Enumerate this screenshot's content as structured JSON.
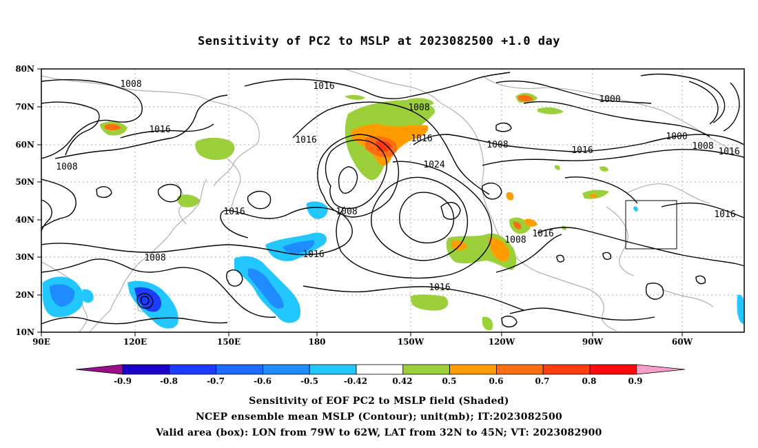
{
  "title": "Sensitivity of PC2 to MSLP at 2023082500 +1.0 day",
  "axes": {
    "lat_labels": [
      "80N",
      "70N",
      "60N",
      "50N",
      "40N",
      "30N",
      "20N",
      "10N"
    ],
    "lon_labels": [
      "90E",
      "120E",
      "150E",
      "180",
      "150W",
      "120W",
      "90W",
      "60W"
    ]
  },
  "contour_labels": [
    "1008",
    "1016",
    "1008",
    "1016",
    "1016",
    "1008",
    "1016",
    "1024",
    "1008",
    "1000",
    "1000",
    "1008",
    "1016",
    "1008",
    "1016",
    "1016",
    "1008",
    "1016",
    "1016",
    "1008"
  ],
  "colorbar": {
    "tick_labels": [
      "-0.9",
      "-0.8",
      "-0.7",
      "-0.6",
      "-0.5",
      "-0.42",
      "0.42",
      "0.5",
      "0.6",
      "0.7",
      "0.8",
      "0.9"
    ],
    "colors": [
      "#9b0e8a",
      "#1a00c8",
      "#1e3cff",
      "#1b6bff",
      "#1e8cff",
      "#22c7ff",
      "#ffffff",
      "#9bd03a",
      "#ff9d00",
      "#ff6e10",
      "#ff3c10",
      "#ff0a0a",
      "#f6a0c8"
    ]
  },
  "valid_box": {
    "lon_min": -79,
    "lon_max": -62,
    "lat_min": 32,
    "lat_max": 45
  },
  "captions": [
    "Sensitivity of EOF PC2 to MSLP field (Shaded)",
    "NCEP ensemble mean MSLP (Contour); unit(mb); IT:2023082500",
    "Valid area (box): LON from 79W to 62W, LAT from 32N to 45N; VT: 2023082900"
  ]
}
